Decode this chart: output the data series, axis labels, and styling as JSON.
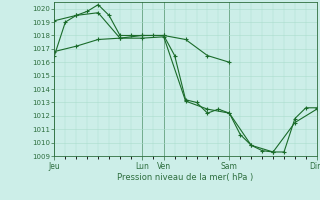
{
  "background_color": "#cceee8",
  "grid_color": "#aaddcc",
  "line_color": "#1a6b2a",
  "xlabel": "Pression niveau de la mer( hPa )",
  "ylim": [
    1009,
    1020.5
  ],
  "yticks": [
    1009,
    1010,
    1011,
    1012,
    1013,
    1014,
    1015,
    1016,
    1017,
    1018,
    1019,
    1020
  ],
  "xtick_labels": [
    "Jeu",
    "Lun",
    "Ven",
    "Sam",
    "Dim"
  ],
  "xtick_positions": [
    0,
    24,
    30,
    48,
    72
  ],
  "vlines": [
    0,
    24,
    30,
    48,
    72
  ],
  "xlim": [
    0,
    72
  ],
  "series1_x": [
    0,
    3,
    6,
    9,
    12,
    15,
    18,
    21,
    24,
    27,
    30,
    33,
    36,
    39,
    42,
    45,
    48,
    51,
    54,
    57,
    60,
    63,
    66,
    69,
    72
  ],
  "series1_y": [
    1016.5,
    1019.0,
    1019.5,
    1019.8,
    1020.3,
    1019.5,
    1018.0,
    1018.0,
    1018.0,
    1018.0,
    1018.0,
    1016.5,
    1013.2,
    1013.0,
    1012.2,
    1012.5,
    1012.2,
    1010.6,
    1009.8,
    1009.4,
    1009.3,
    1009.3,
    1011.8,
    1012.6,
    1012.6
  ],
  "series2_x": [
    0,
    6,
    12,
    18,
    24,
    30,
    36,
    42,
    48,
    54,
    60,
    66,
    72
  ],
  "series2_y": [
    1019.1,
    1019.5,
    1019.7,
    1017.8,
    1017.8,
    1017.9,
    1013.1,
    1012.5,
    1012.2,
    1009.8,
    1009.3,
    1011.5,
    1012.5
  ],
  "series3_x": [
    0,
    6,
    12,
    18,
    24,
    30,
    36,
    42,
    48
  ],
  "series3_y": [
    1016.8,
    1017.2,
    1017.7,
    1017.8,
    1018.0,
    1018.0,
    1017.7,
    1016.5,
    1016.0
  ]
}
